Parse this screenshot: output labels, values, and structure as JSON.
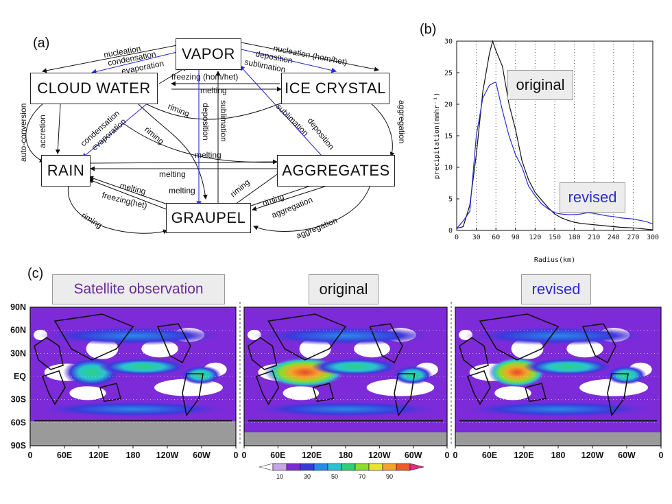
{
  "panels": {
    "a": "(a)",
    "b": "(b)",
    "c": "(c)"
  },
  "diagram": {
    "nodes": {
      "vapor": "VAPOR",
      "cloud_water": "CLOUD WATER",
      "ice_crystal": "ICE CRYSTAL",
      "rain": "RAIN",
      "aggregates": "AGGREGATES",
      "graupel": "GRAUPEL"
    },
    "labels": {
      "nucleation": "nucleation",
      "condensation": "condensation",
      "evaporation": "evaporation",
      "nucleation_homhet": "nucleation (hom/het)",
      "deposition": "deposition",
      "sublimation": "sublimation",
      "freezing_homhet": "freezing (hom/het)",
      "melting": "melting",
      "auto_conversion": "auto-conversion",
      "accretion": "accretion",
      "riming": "riming",
      "aggregation": "aggregation",
      "freezing_het": "freezing(het)"
    },
    "colors": {
      "original_process": "#111111",
      "revised_process": "#2b2bd6"
    }
  },
  "chart_data": {
    "type": "line",
    "xlabel": "Radius(km)",
    "ylabel": "precipitation(mmhr⁻¹)",
    "xlim": [
      0,
      300
    ],
    "ylim": [
      0,
      30
    ],
    "xticks": [
      "0",
      "30",
      "60",
      "90",
      "120",
      "150",
      "180",
      "210",
      "240",
      "270",
      "300"
    ],
    "yticks": [
      "0",
      "5",
      "10",
      "15",
      "20",
      "25",
      "30"
    ],
    "grid": "dotted vertical",
    "series": [
      {
        "name": "original",
        "color": "#111111",
        "x": [
          0,
          10,
          20,
          30,
          40,
          50,
          55,
          60,
          70,
          80,
          90,
          100,
          110,
          120,
          130,
          140,
          150,
          160,
          170,
          180,
          190,
          200,
          210,
          220,
          230,
          240,
          250,
          260,
          270,
          280,
          290,
          300
        ],
        "y": [
          0.3,
          0.6,
          4,
          12,
          22,
          28,
          30,
          28.5,
          26,
          20,
          16,
          11,
          8,
          6,
          4.8,
          3.6,
          2.6,
          2.0,
          1.6,
          1.3,
          1.1,
          1.0,
          0.9,
          0.8,
          0.7,
          0.6,
          0.5,
          0.45,
          0.4,
          0.3,
          0.2,
          0.1
        ]
      },
      {
        "name": "revised",
        "color": "#2b2bd6",
        "x": [
          0,
          10,
          20,
          30,
          40,
          50,
          55,
          60,
          70,
          80,
          90,
          100,
          110,
          120,
          130,
          140,
          150,
          160,
          170,
          180,
          190,
          200,
          210,
          220,
          230,
          240,
          250,
          260,
          270,
          280,
          290,
          300
        ],
        "y": [
          0.3,
          1.5,
          3,
          15,
          21,
          23,
          23.3,
          23.5,
          19,
          15,
          12,
          10,
          7,
          5.5,
          4.2,
          3.4,
          2.8,
          2.6,
          2.5,
          2.5,
          2.6,
          2.8,
          2.7,
          2.5,
          2.3,
          2.2,
          2.0,
          1.9,
          1.8,
          1.6,
          1.4,
          1.0
        ]
      }
    ],
    "legend": [
      "original",
      "revised"
    ]
  },
  "maps": {
    "titles": [
      "Satellite observation",
      "original",
      "revised"
    ],
    "title_colors": [
      "#6a2a9a",
      "#111111",
      "#2b2bd6"
    ],
    "lat_ticks": [
      "90N",
      "60N",
      "30N",
      "EQ",
      "30S",
      "60S",
      "90S"
    ],
    "lon_ticks": [
      "0",
      "60E",
      "120E",
      "180",
      "120W",
      "60W",
      "0"
    ],
    "colorbar": {
      "ticks": [
        "10",
        "30",
        "50",
        "70",
        "90"
      ],
      "colors": [
        "#ffffff",
        "#c7a6e8",
        "#7d2bd8",
        "#3a3adc",
        "#2a8ae6",
        "#29c4cf",
        "#2bd27a",
        "#8fdc2a",
        "#e6e62a",
        "#f2a52a",
        "#ef5a2a",
        "#e62a8a"
      ]
    }
  }
}
